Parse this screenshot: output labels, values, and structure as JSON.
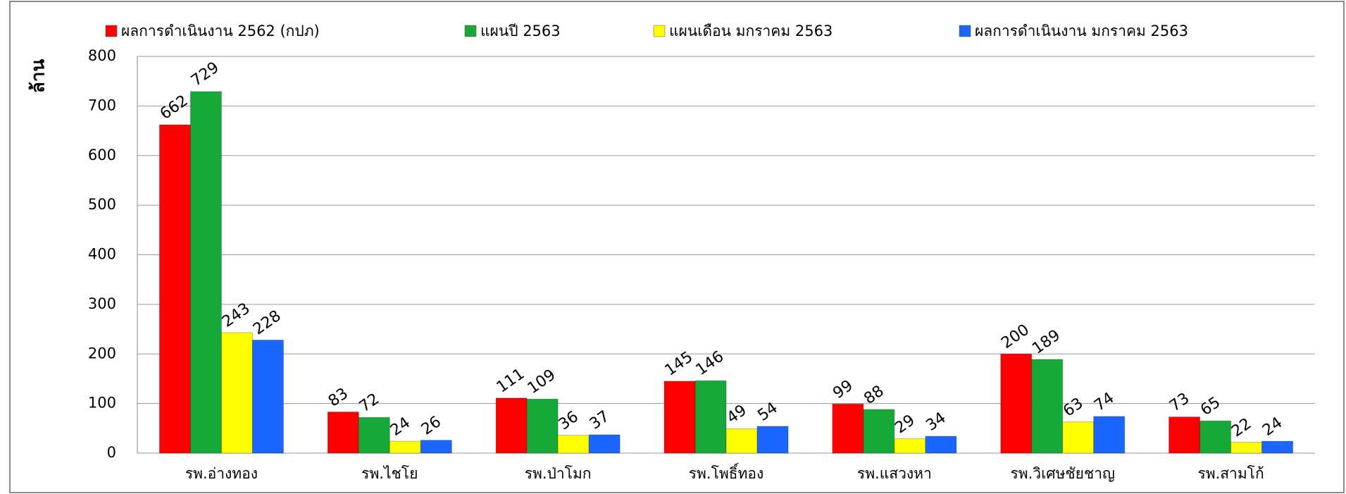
{
  "chart_data": {
    "type": "bar",
    "y_label": "ล้าน",
    "categories": [
      "รพ.อ่างทอง",
      "รพ.ไชโย",
      "รพ.ป่าโมก",
      "รพ.โพธิ์ทอง",
      "รพ.แสวงหา",
      "รพ.วิเศษชัยชาญ",
      "รพ.สามโก้"
    ],
    "series": [
      {
        "name": "ผลการดำเนินงาน  2562 (กปภ)",
        "color": "#ff0000",
        "values": [
          662,
          83,
          111,
          145,
          99,
          200,
          73
        ]
      },
      {
        "name": "แผนปี  2563",
        "color": "#17a83a",
        "values": [
          729,
          72,
          109,
          146,
          88,
          189,
          65
        ]
      },
      {
        "name": "แผนเดือน มกราคม 2563",
        "color": "#ffff00",
        "values": [
          243,
          24,
          36,
          49,
          29,
          63,
          22
        ]
      },
      {
        "name": "ผลการดำเนินงาน มกราคม 2563",
        "color": "#1a66ff",
        "values": [
          228,
          26,
          37,
          54,
          34,
          74,
          24
        ]
      }
    ],
    "ylim": [
      0,
      800
    ],
    "yticks": [
      0,
      100,
      200,
      300,
      400,
      500,
      600,
      700,
      800
    ],
    "grid": true
  }
}
